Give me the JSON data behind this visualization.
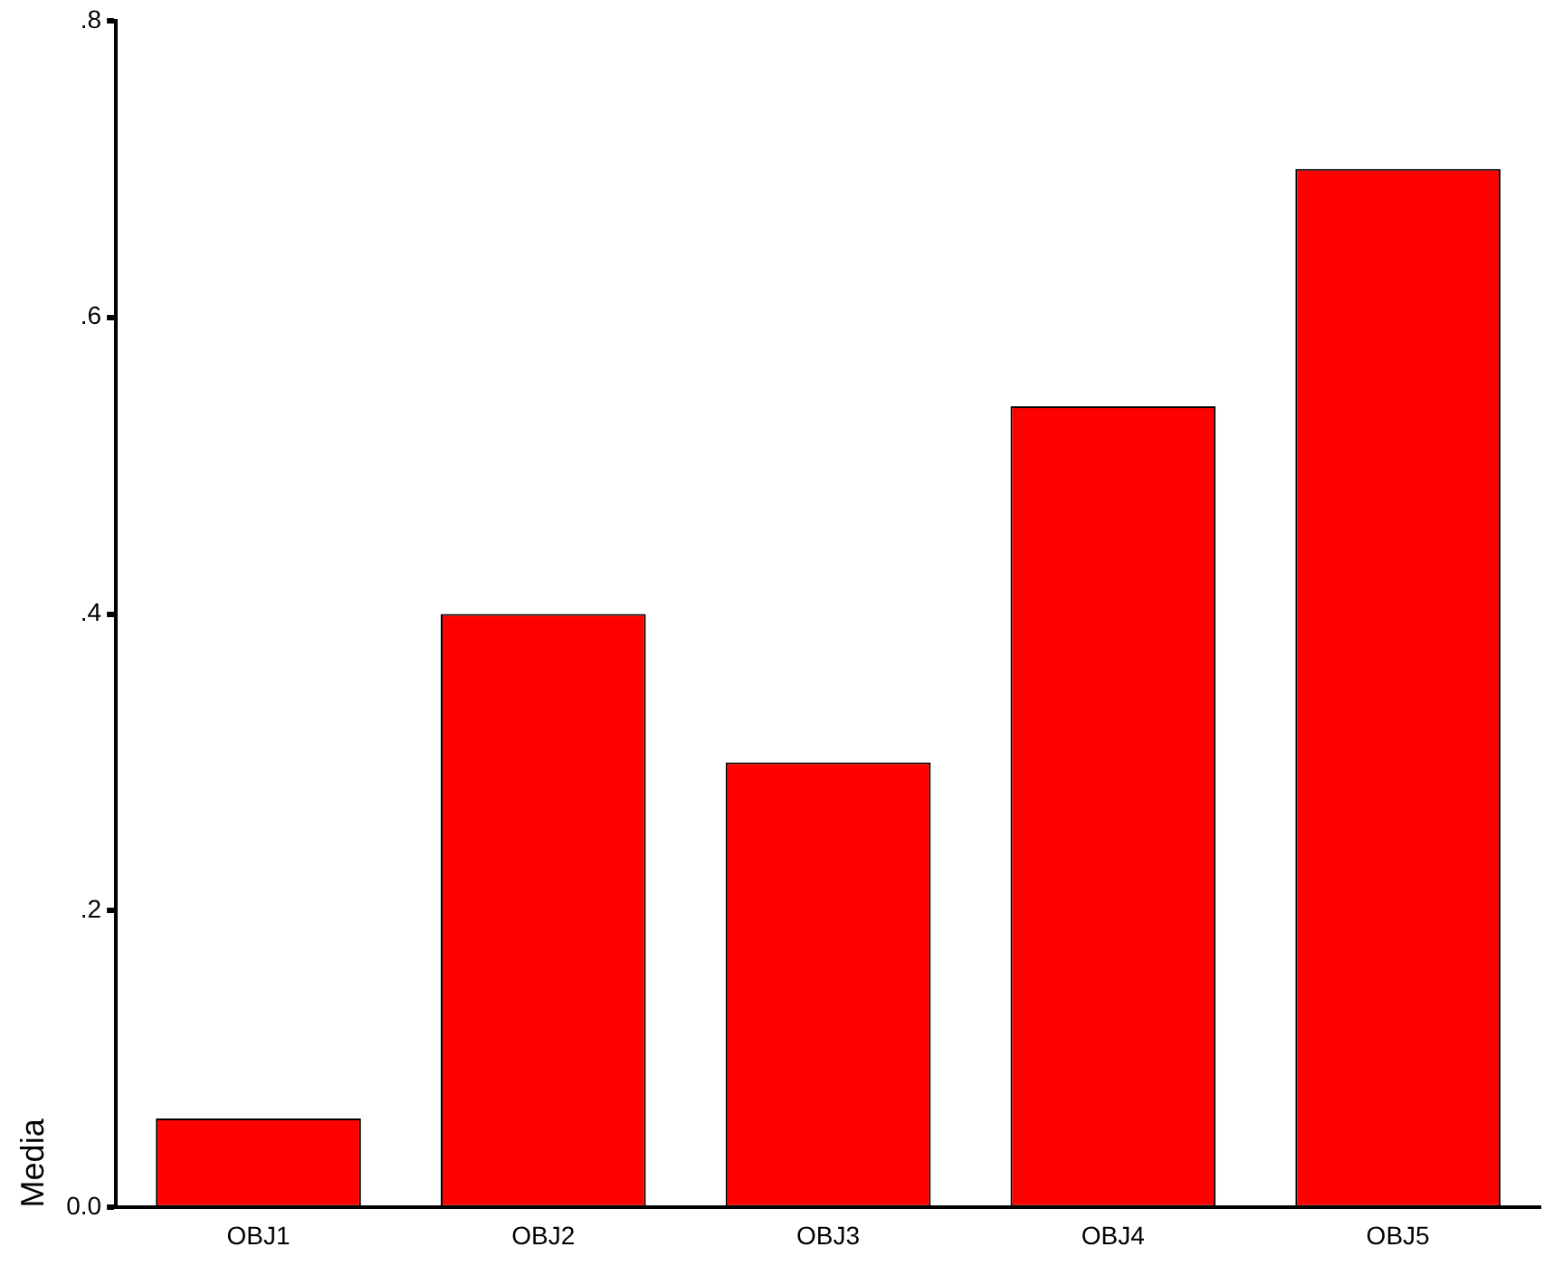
{
  "chart_data": {
    "type": "bar",
    "ylabel": "Media",
    "categories": [
      "OBJ1",
      "OBJ2",
      "OBJ3",
      "OBJ4",
      "OBJ5"
    ],
    "values": [
      0.06,
      0.4,
      0.3,
      0.54,
      0.7
    ],
    "color": "#ff0000",
    "ylim": [
      0,
      0.8
    ],
    "yticks": [
      {
        "value": 0,
        "label": "0.0"
      },
      {
        "value": 0.2,
        "label": ".2"
      },
      {
        "value": 0.4,
        "label": ".4"
      },
      {
        "value": 0.6,
        "label": ".6"
      },
      {
        "value": 0.8,
        "label": ".8"
      }
    ],
    "grid": false,
    "legend": false
  }
}
